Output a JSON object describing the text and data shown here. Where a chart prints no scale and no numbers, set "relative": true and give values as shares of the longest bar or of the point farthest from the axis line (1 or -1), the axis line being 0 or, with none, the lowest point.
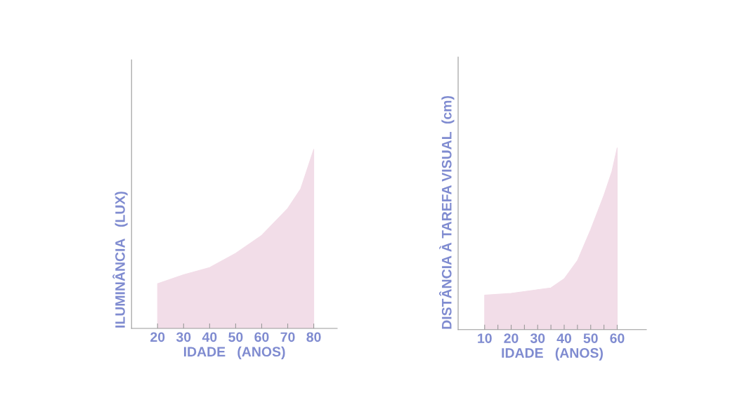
{
  "chart_data": [
    {
      "type": "area",
      "relative": true,
      "xlabel": "IDADE   (ANOS)",
      "ylabel": "ILUMINÂNCIA   (LUX)",
      "xlim": [
        10,
        89
      ],
      "xticks": [
        20,
        30,
        40,
        50,
        60,
        70,
        80
      ],
      "series": [
        {
          "color": "#f2dde8",
          "x": [
            20,
            30,
            40,
            50,
            60,
            70,
            75,
            80
          ],
          "values": [
            0.25,
            0.3,
            0.34,
            0.42,
            0.52,
            0.67,
            0.78,
            1
          ]
        }
      ]
    },
    {
      "type": "area",
      "relative": true,
      "xlabel": "IDADE   (ANOS)",
      "ylabel": "DISTÂNCIA À TAREFA VISUAL  (cm)",
      "xlim": [
        0,
        71
      ],
      "xticks": [
        10,
        {
          "value": 15,
          "label": null
        },
        20,
        {
          "value": 25,
          "label": null
        },
        30,
        {
          "value": 35,
          "label": null
        },
        40,
        {
          "value": 45,
          "label": null
        },
        50,
        {
          "value": 55,
          "label": null
        },
        60
      ],
      "series": [
        {
          "color": "#f2dde8",
          "x": [
            10,
            20,
            30,
            35,
            40,
            45,
            50,
            55,
            58,
            60
          ],
          "values": [
            0.19,
            0.2,
            0.22,
            0.23,
            0.28,
            0.38,
            0.55,
            0.74,
            0.87,
            1
          ]
        }
      ]
    }
  ]
}
